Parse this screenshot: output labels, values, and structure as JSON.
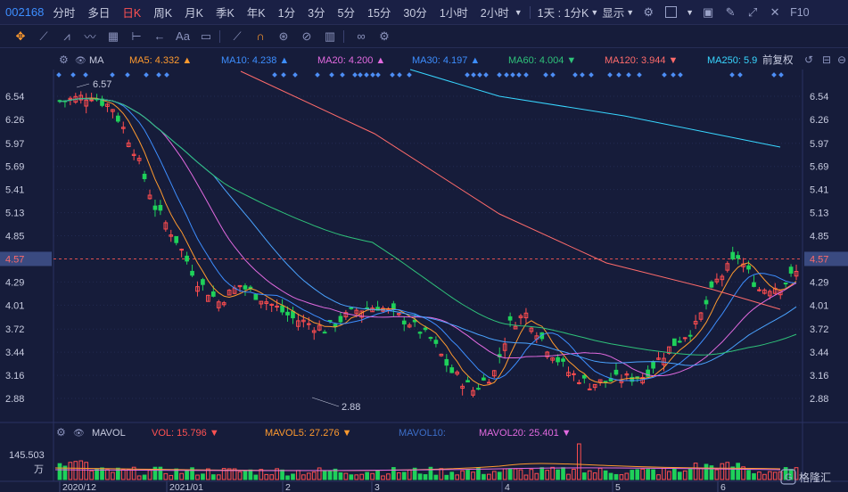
{
  "topbar": {
    "stock_code": "002168",
    "periods": [
      "分时",
      "多日",
      "日K",
      "周K",
      "月K",
      "季K",
      "年K",
      "1分",
      "3分",
      "5分",
      "15分",
      "30分",
      "1小时",
      "2小时"
    ],
    "active_period": "日K",
    "interval_select": "1天 : 1分K",
    "display_select": "显示",
    "f10_label": "F10"
  },
  "drawbar": {
    "tools": [
      "crosshair-icon",
      "line-icon",
      "ray-icon",
      "wave-icon",
      "channel-icon",
      "range-icon",
      "arrow-icon",
      "text-icon",
      "note-icon",
      "pen-icon",
      "magnet-icon",
      "lock-icon",
      "hide-icon",
      "trash-icon",
      "link-icon",
      "gear-icon"
    ],
    "text_tool_label": "Aa"
  },
  "ma_legend": {
    "title": "MA",
    "items": [
      {
        "label": "MA5: 4.332",
        "color": "#ff9a2e",
        "arrow": "up"
      },
      {
        "label": "MA10: 4.238",
        "color": "#3d8eff",
        "arrow": "up"
      },
      {
        "label": "MA20: 4.200",
        "color": "#e26ae0",
        "arrow": "up"
      },
      {
        "label": "MA30: 4.197",
        "color": "#3d8eff",
        "arrow": "up"
      },
      {
        "label": "MA60: 4.004",
        "color": "#2fc27a",
        "arrow": "down"
      },
      {
        "label": "MA120: 3.944",
        "color": "#ff6b6b",
        "arrow": "down"
      },
      {
        "label": "MA250: 5.9",
        "color": "#38d6ff",
        "arrow": ""
      }
    ],
    "adjust_label": "前复权"
  },
  "price_axis": {
    "ticks": [
      "6.54",
      "6.26",
      "5.97",
      "5.69",
      "5.41",
      "5.13",
      "4.85",
      "4.57",
      "4.29",
      "4.01",
      "3.72",
      "3.44",
      "3.16",
      "2.88"
    ],
    "current_price": "4.57",
    "max_label": "6.57",
    "min_label": "2.88"
  },
  "vol_legend": {
    "title": "MAVOL",
    "items": [
      {
        "label": "VOL: 15.796",
        "color": "#ff5252",
        "arrow": "down"
      },
      {
        "label": "MAVOL5: 27.276",
        "color": "#ff9a2e",
        "arrow": "down"
      },
      {
        "label": "MAVOL10:",
        "color": "#3d6ec9",
        "arrow": ""
      },
      {
        "label": "MAVOL20: 25.401",
        "color": "#e26ae0",
        "arrow": "down"
      }
    ],
    "axis_top": "145.503",
    "axis_unit": "万"
  },
  "date_axis": [
    "2020/12",
    "2021/01",
    "2",
    "3",
    "4",
    "5",
    "6"
  ],
  "watermark": "格隆汇"
}
